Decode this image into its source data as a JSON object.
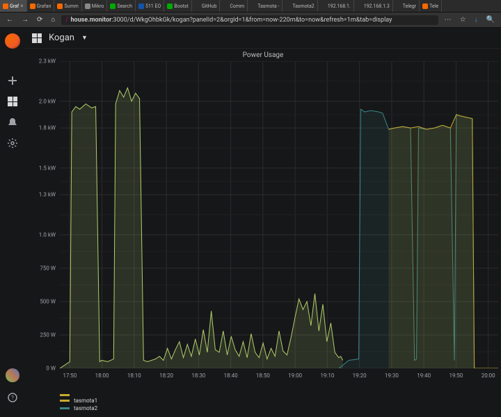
{
  "browser": {
    "tabs": [
      {
        "label": "Graf",
        "fav": "#f46800",
        "active": true
      },
      {
        "label": "Grafan",
        "fav": "#f46800"
      },
      {
        "label": "Summ",
        "fav": "#f46800"
      },
      {
        "label": "Mikro",
        "fav": "#888"
      },
      {
        "label": "Search",
        "fav": "#0a0"
      },
      {
        "label": "511 EO",
        "fav": "#15a"
      },
      {
        "label": "Bootst",
        "fav": "#0a0"
      },
      {
        "label": "GitHub",
        "fav": "#fff0"
      },
      {
        "label": "Comm",
        "fav": "#fff0"
      },
      {
        "label": "Tasmota -",
        "fav": "#fff0"
      },
      {
        "label": "Tasmota2",
        "fav": "#fff0"
      },
      {
        "label": "192.168.1.",
        "fav": "#fff0"
      },
      {
        "label": "192.168.1.3",
        "fav": "#fff0"
      },
      {
        "label": "Telegr",
        "fav": "#fff0"
      },
      {
        "label": "Tele",
        "fav": "#f46800"
      }
    ],
    "url_host": "house.monitor",
    "url_path": ":3000/d/WkgOhbkGk/kogan?panelId=2&orgId=1&from=now-220m&to=now&refresh=1m&tab=display",
    "nav": {
      "back": "←",
      "fwd": "→",
      "reload": "⟳",
      "home": "⌂",
      "menu": "⋯",
      "star": "☆",
      "dl": "↓",
      "search": "🔍"
    }
  },
  "grafana": {
    "dashboard": "Kogan",
    "sidebar": {
      "plus": "add",
      "dash": "dashboards",
      "bell": "alerts",
      "gear": "settings",
      "help": "help"
    },
    "panel": {
      "title": "Power Usage",
      "type": "line",
      "background": "#161719",
      "grid_color": "#2c2c2e",
      "grid_minor": "#202022",
      "y": {
        "ticks": [
          "2.3 kW",
          "2.0 kW",
          "1.8 kW",
          "1.5 kW",
          "1.3 kW",
          "1.0 kW",
          "750 W",
          "500 W",
          "250 W",
          "0 W"
        ],
        "tick_vals": [
          2300,
          2000,
          1800,
          1500,
          1300,
          1000,
          750,
          500,
          250,
          0
        ],
        "max": 2300,
        "min": 0
      },
      "x": {
        "ticks": [
          "17:50",
          "18:00",
          "18:10",
          "18:20",
          "18:30",
          "18:40",
          "18:50",
          "19:00",
          "19:10",
          "19:20",
          "19:30",
          "19:40",
          "19:50",
          "20:00"
        ],
        "min": "17:45",
        "max": "20:04",
        "range_min": 220
      },
      "series": [
        {
          "name": "tasmota1",
          "color": "#b0cd6a",
          "fill_opacity": 0.15,
          "points": [
            [
              0,
              0
            ],
            [
              4,
              40
            ],
            [
              5,
              50
            ],
            [
              6,
              1920
            ],
            [
              8,
              1960
            ],
            [
              10,
              1940
            ],
            [
              13,
              1980
            ],
            [
              16,
              1950
            ],
            [
              18,
              1960
            ],
            [
              20,
              50
            ],
            [
              21,
              60
            ],
            [
              24,
              50
            ],
            [
              27,
              70
            ],
            [
              28,
              1980
            ],
            [
              30,
              2080
            ],
            [
              32,
              2030
            ],
            [
              34,
              2100
            ],
            [
              36,
              2000
            ],
            [
              38,
              2060
            ],
            [
              40,
              2020
            ],
            [
              42,
              60
            ],
            [
              44,
              50
            ],
            [
              48,
              70
            ],
            [
              50,
              90
            ],
            [
              52,
              60
            ],
            [
              54,
              150
            ],
            [
              56,
              70
            ],
            [
              58,
              140
            ],
            [
              60,
              200
            ],
            [
              62,
              80
            ],
            [
              64,
              180
            ],
            [
              66,
              90
            ],
            [
              68,
              220
            ],
            [
              70,
              100
            ],
            [
              72,
              290
            ],
            [
              74,
              120
            ],
            [
              76,
              430
            ],
            [
              78,
              140
            ],
            [
              80,
              120
            ],
            [
              82,
              280
            ],
            [
              84,
              100
            ],
            [
              86,
              240
            ],
            [
              88,
              140
            ],
            [
              90,
              90
            ],
            [
              92,
              200
            ],
            [
              94,
              80
            ],
            [
              96,
              260
            ],
            [
              98,
              120
            ],
            [
              100,
              80
            ],
            [
              102,
              190
            ],
            [
              104,
              70
            ],
            [
              106,
              150
            ],
            [
              108,
              90
            ],
            [
              110,
              280
            ],
            [
              112,
              130
            ],
            [
              114,
              100
            ],
            [
              116,
              230
            ],
            [
              118,
              380
            ],
            [
              120,
              520
            ],
            [
              122,
              440
            ],
            [
              124,
              500
            ],
            [
              126,
              320
            ],
            [
              128,
              560
            ],
            [
              130,
              280
            ],
            [
              132,
              480
            ],
            [
              134,
              200
            ],
            [
              136,
              340
            ],
            [
              138,
              120
            ],
            [
              140,
              80
            ],
            [
              141,
              90
            ],
            [
              142,
              60
            ]
          ]
        },
        {
          "name": "tasmota2",
          "color": "#3b8686",
          "fill_opacity": 0.12,
          "points": [
            [
              140,
              0
            ],
            [
              145,
              60
            ],
            [
              150,
              70
            ],
            [
              151,
              1940
            ],
            [
              153,
              1920
            ],
            [
              156,
              1930
            ],
            [
              160,
              1920
            ],
            [
              162,
              1910
            ],
            [
              165,
              1790
            ],
            [
              168,
              1800
            ],
            [
              172,
              1810
            ],
            [
              176,
              1800
            ],
            [
              178,
              60
            ],
            [
              179,
              70
            ],
            [
              180,
              1800
            ],
            [
              184,
              1790
            ],
            [
              188,
              1800
            ],
            [
              192,
              1820
            ],
            [
              196,
              1800
            ],
            [
              198,
              60
            ],
            [
              199,
              1900
            ],
            [
              201,
              1890
            ],
            [
              204,
              1880
            ],
            [
              207,
              1870
            ],
            [
              208,
              0
            ],
            [
              220,
              0
            ]
          ]
        },
        {
          "name": "tasmota1_tail",
          "_hidden": true,
          "color": "#c9aa2f",
          "fill_opacity": 0.12,
          "points": [
            [
              165,
              1790
            ],
            [
              168,
              1800
            ],
            [
              172,
              1810
            ],
            [
              176,
              1800
            ],
            [
              180,
              1810
            ],
            [
              184,
              1790
            ],
            [
              188,
              1800
            ],
            [
              192,
              1820
            ],
            [
              196,
              1800
            ],
            [
              199,
              1900
            ],
            [
              201,
              1890
            ],
            [
              204,
              1880
            ],
            [
              207,
              1870
            ],
            [
              208,
              0
            ],
            [
              220,
              0
            ]
          ]
        }
      ],
      "legend": [
        {
          "name": "tasmota1",
          "color": "#c9aa2f"
        },
        {
          "name": "tasmota2",
          "color": "#3b8686"
        }
      ]
    }
  }
}
